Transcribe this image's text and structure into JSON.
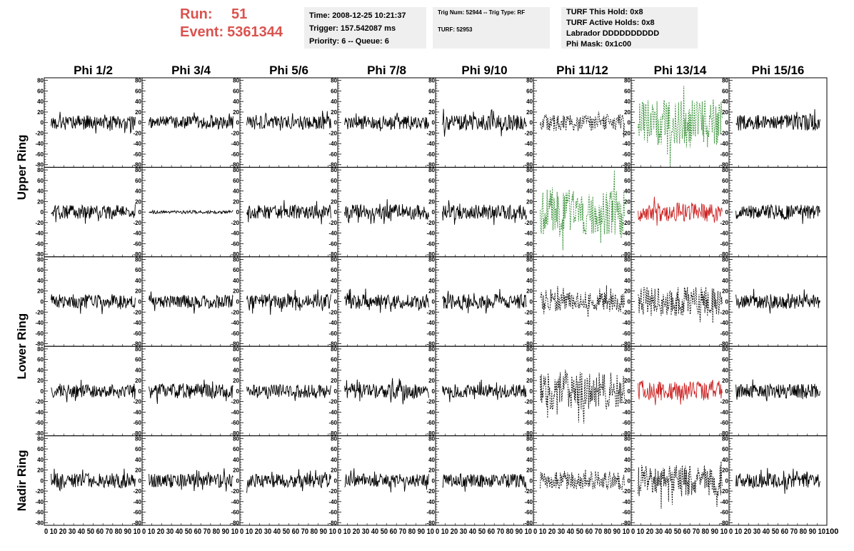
{
  "header": {
    "run_label": "Run:",
    "run_value": "51",
    "event_label": "Event:",
    "event_value": "5361344",
    "colors": {
      "accent": "#d9534f",
      "box_bg": "#efefef"
    }
  },
  "info_boxes": {
    "box1": {
      "time": "Time: 2008-12-25 10:21:37",
      "trigger": "Trigger: 157.542087 ms",
      "priority": "Priority: 6 -- Queue: 6"
    },
    "box2": {
      "trig": "Trig Num: 52944 -- Trig Type: RF",
      "turf": "TURF: 52953"
    },
    "box3": {
      "this_hold": "TURF This Hold: 0x8",
      "active_holds": "TURF Active Holds: 0x8",
      "labrador": "Labrador DDDDDDDDDD",
      "phi_mask": "Phi Mask: 0x1c00"
    }
  },
  "chart_data": {
    "type": "line",
    "column_titles": [
      "Phi 1/2",
      "Phi 3/4",
      "Phi 5/6",
      "Phi 7/8",
      "Phi 9/10",
      "Phi 11/12",
      "Phi 13/14",
      "Phi 15/16"
    ],
    "ring_labels": [
      "Upper Ring",
      "Lower Ring",
      "Nadir Ring"
    ],
    "rows_per_ring": [
      2,
      2,
      1
    ],
    "ylim": [
      -85,
      85
    ],
    "yticks": [
      80,
      60,
      40,
      20,
      0,
      -20,
      -40,
      -60,
      -80
    ],
    "xlim": [
      0,
      100
    ],
    "xticks": [
      0,
      10,
      20,
      30,
      40,
      50,
      60,
      70,
      80,
      90,
      100
    ],
    "x_tick_labels_combined": "0 10 20 30 40 50 60 70 80 90 10",
    "last_x_tick_label": "100",
    "style_colors": {
      "black": "#000000",
      "green": "#2e8b2e",
      "red": "#cc2222"
    },
    "panels": [
      [
        {
          "style": "black",
          "amp": 14,
          "seed": 1
        },
        {
          "style": "black",
          "amp": 12,
          "seed": 2
        },
        {
          "style": "black",
          "amp": 13,
          "seed": 3
        },
        {
          "style": "black",
          "amp": 13,
          "seed": 4
        },
        {
          "style": "black",
          "amp": 15,
          "seed": 5
        },
        {
          "style": "black-dashed",
          "amp": 16,
          "seed": 6
        },
        {
          "style": "green-dashed",
          "amp": 45,
          "seed": 7
        },
        {
          "style": "black",
          "amp": 15,
          "seed": 8
        }
      ],
      [
        {
          "style": "black",
          "amp": 13,
          "seed": 9
        },
        {
          "style": "black",
          "amp": 3,
          "seed": 10
        },
        {
          "style": "black",
          "amp": 13,
          "seed": 11
        },
        {
          "style": "black",
          "amp": 14,
          "seed": 12
        },
        {
          "style": "black",
          "amp": 14,
          "seed": 13
        },
        {
          "style": "green-dashed",
          "amp": 45,
          "seed": 14
        },
        {
          "style": "red",
          "amp": 18,
          "seed": 15
        },
        {
          "style": "black",
          "amp": 14,
          "seed": 16
        }
      ],
      [
        {
          "style": "black",
          "amp": 14,
          "seed": 17
        },
        {
          "style": "black",
          "amp": 13,
          "seed": 18
        },
        {
          "style": "black",
          "amp": 14,
          "seed": 19
        },
        {
          "style": "black",
          "amp": 14,
          "seed": 20
        },
        {
          "style": "black",
          "amp": 14,
          "seed": 21
        },
        {
          "style": "black-dashed",
          "amp": 18,
          "seed": 22
        },
        {
          "style": "black-dashed",
          "amp": 28,
          "seed": 23
        },
        {
          "style": "black",
          "amp": 14,
          "seed": 24
        }
      ],
      [
        {
          "style": "black",
          "amp": 12,
          "seed": 25
        },
        {
          "style": "black",
          "amp": 14,
          "seed": 26
        },
        {
          "style": "black",
          "amp": 13,
          "seed": 27
        },
        {
          "style": "black",
          "amp": 14,
          "seed": 28
        },
        {
          "style": "black",
          "amp": 13,
          "seed": 29
        },
        {
          "style": "black-dashed",
          "amp": 36,
          "seed": 30
        },
        {
          "style": "red",
          "amp": 18,
          "seed": 31
        },
        {
          "style": "black",
          "amp": 14,
          "seed": 32
        }
      ],
      [
        {
          "style": "black",
          "amp": 14,
          "seed": 33
        },
        {
          "style": "black",
          "amp": 13,
          "seed": 34
        },
        {
          "style": "black",
          "amp": 13,
          "seed": 35
        },
        {
          "style": "black",
          "amp": 13,
          "seed": 36
        },
        {
          "style": "black",
          "amp": 13,
          "seed": 37
        },
        {
          "style": "black-dashed",
          "amp": 17,
          "seed": 38
        },
        {
          "style": "black-dashed",
          "amp": 30,
          "seed": 39
        },
        {
          "style": "black",
          "amp": 14,
          "seed": 40
        }
      ]
    ]
  }
}
